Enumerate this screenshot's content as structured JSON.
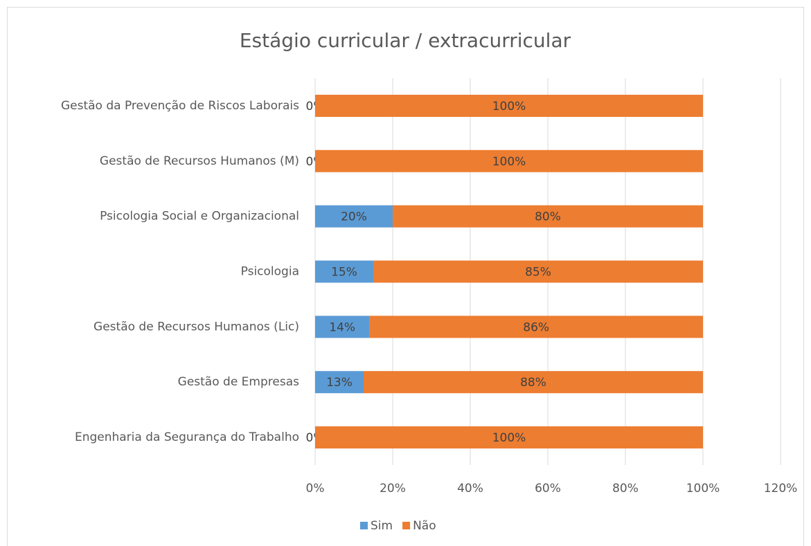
{
  "chart_data": {
    "type": "stacked_bar_horizontal",
    "title": "Estágio curricular / extracurricular",
    "categories": [
      "Gestão da Prevenção de Riscos Laborais",
      "Gestão de Recursos Humanos (M)",
      "Psicologia Social e Organizacional",
      "Psicologia",
      "Gestão de Recursos Humanos (Lic)",
      "Gestão de Empresas",
      "Engenharia da Segurança do Trabalho"
    ],
    "series": [
      {
        "name": "Sim",
        "color": "#5b9bd5",
        "values": [
          0,
          0,
          20,
          15,
          14,
          12.5,
          0
        ],
        "value_labels": [
          "0%",
          "0%",
          "20%",
          "15%",
          "14%",
          "13%",
          "0%"
        ]
      },
      {
        "name": "Não",
        "color": "#ed7d31",
        "values": [
          100,
          100,
          80,
          85,
          86,
          87.5,
          100
        ],
        "value_labels": [
          "100%",
          "100%",
          "80%",
          "85%",
          "86%",
          "88%",
          "100%"
        ]
      }
    ],
    "xlim": [
      0,
      120
    ],
    "xticks": [
      {
        "value": 0,
        "label": "0%"
      },
      {
        "value": 20,
        "label": "20%"
      },
      {
        "value": 40,
        "label": "40%"
      },
      {
        "value": 60,
        "label": "60%"
      },
      {
        "value": 80,
        "label": "80%"
      },
      {
        "value": 100,
        "label": "100%"
      },
      {
        "value": 120,
        "label": "120%"
      }
    ],
    "grid": true,
    "legend": "bottom"
  }
}
